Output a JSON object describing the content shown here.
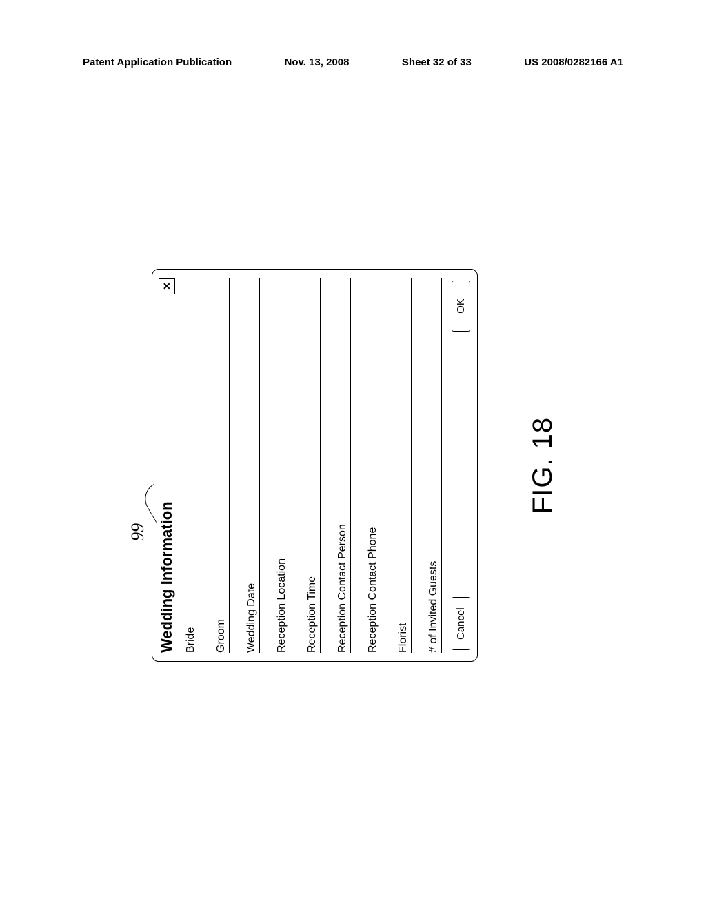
{
  "header": {
    "publication": "Patent Application Publication",
    "date": "Nov. 13, 2008",
    "sheet": "Sheet 32 of 33",
    "pubnum": "US 2008/0282166 A1"
  },
  "referenceNumber": "99",
  "dialog": {
    "title": "Wedding Information",
    "closeGlyph": "×",
    "fields": [
      {
        "label": "Bride"
      },
      {
        "label": "Groom"
      },
      {
        "label": "Wedding Date"
      },
      {
        "label": "Reception Location"
      },
      {
        "label": "Reception Time"
      },
      {
        "label": "Reception Contact Person"
      },
      {
        "label": "Reception Contact Phone"
      },
      {
        "label": "Florist"
      },
      {
        "label": "# of Invited Guests"
      }
    ],
    "buttons": {
      "cancel": "Cancel",
      "ok": "OK"
    }
  },
  "figureCaption": "FIG. 18"
}
